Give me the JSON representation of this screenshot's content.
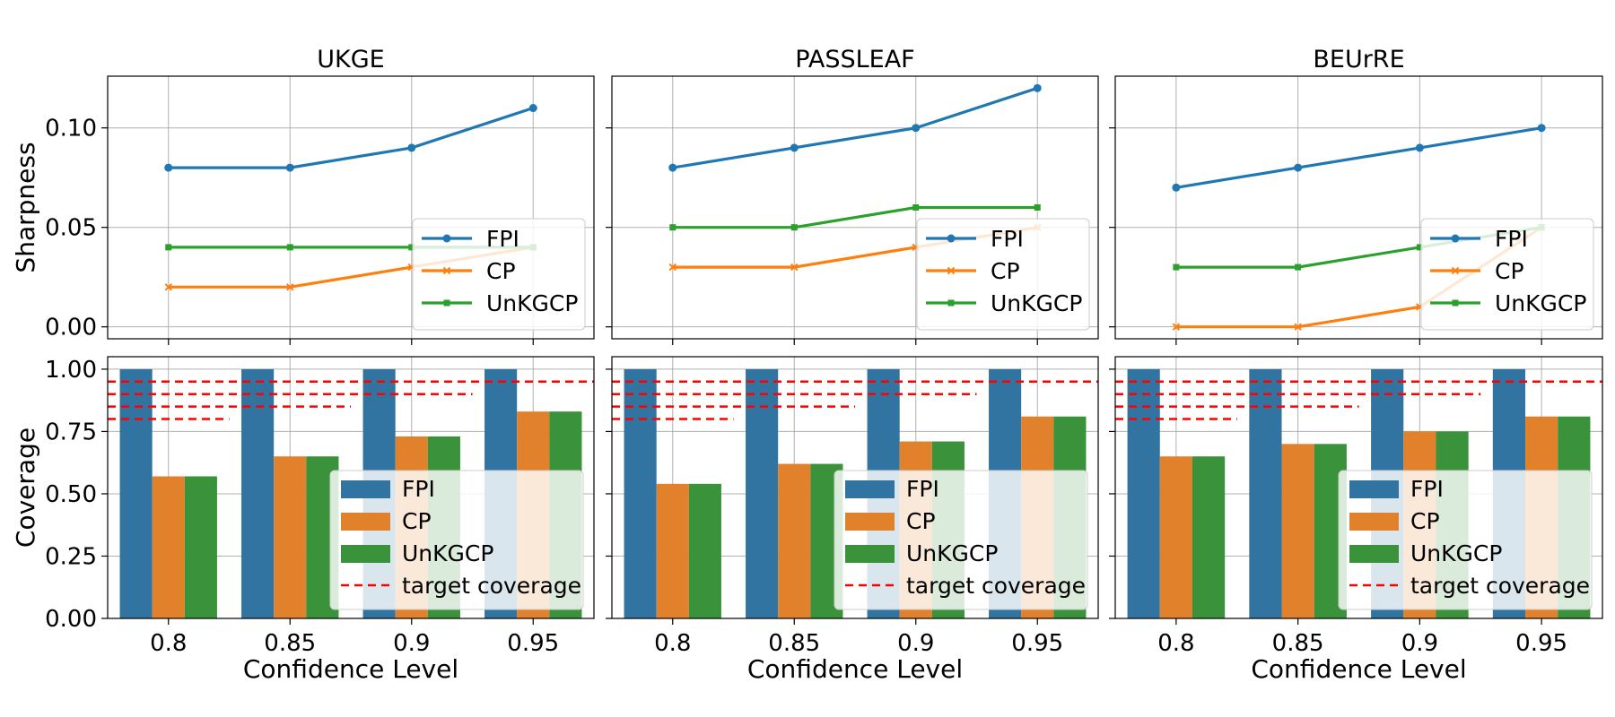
{
  "chart_data": [
    {
      "type": "line",
      "model": "UKGE",
      "title": "UKGE",
      "xlabel": "",
      "ylabel": "Sharpness",
      "categories": [
        "0.8",
        "0.85",
        "0.9",
        "0.95"
      ],
      "ylim": [
        -0.006,
        0.126
      ],
      "yticks": [
        "0.00",
        "0.05",
        "0.10"
      ],
      "legend_position": "lower-right",
      "series": [
        {
          "name": "FPI",
          "marker": "circle",
          "color": "#1f77b4",
          "values": [
            0.08,
            0.08,
            0.09,
            0.11
          ]
        },
        {
          "name": "CP",
          "marker": "x",
          "color": "#ff7f0e",
          "values": [
            0.02,
            0.02,
            0.03,
            0.04
          ]
        },
        {
          "name": "UnKGCP",
          "marker": "square",
          "color": "#2ca02c",
          "values": [
            0.04,
            0.04,
            0.04,
            0.04
          ]
        }
      ]
    },
    {
      "type": "line",
      "model": "PASSLEAF",
      "title": "PASSLEAF",
      "xlabel": "",
      "ylabel": "",
      "categories": [
        "0.8",
        "0.85",
        "0.9",
        "0.95"
      ],
      "ylim": [
        -0.006,
        0.126
      ],
      "legend_position": "lower-right",
      "series": [
        {
          "name": "FPI",
          "marker": "circle",
          "color": "#1f77b4",
          "values": [
            0.08,
            0.09,
            0.1,
            0.12
          ]
        },
        {
          "name": "CP",
          "marker": "x",
          "color": "#ff7f0e",
          "values": [
            0.03,
            0.03,
            0.04,
            0.05
          ]
        },
        {
          "name": "UnKGCP",
          "marker": "square",
          "color": "#2ca02c",
          "values": [
            0.05,
            0.05,
            0.06,
            0.06
          ]
        }
      ]
    },
    {
      "type": "line",
      "model": "BEUrRE",
      "title": "BEUrRE",
      "xlabel": "",
      "ylabel": "",
      "categories": [
        "0.8",
        "0.85",
        "0.9",
        "0.95"
      ],
      "ylim": [
        -0.006,
        0.126
      ],
      "legend_position": "lower-right",
      "series": [
        {
          "name": "FPI",
          "marker": "circle",
          "color": "#1f77b4",
          "values": [
            0.07,
            0.08,
            0.09,
            0.1
          ]
        },
        {
          "name": "CP",
          "marker": "x",
          "color": "#ff7f0e",
          "values": [
            0.0,
            0.0,
            0.01,
            0.05
          ]
        },
        {
          "name": "UnKGCP",
          "marker": "square",
          "color": "#2ca02c",
          "values": [
            0.03,
            0.03,
            0.04,
            0.05
          ]
        }
      ]
    },
    {
      "type": "bar",
      "model": "UKGE",
      "title": "",
      "xlabel": "Confidence Level",
      "ylabel": "Coverage",
      "categories": [
        "0.8",
        "0.85",
        "0.9",
        "0.95"
      ],
      "ylim": [
        0,
        1.05
      ],
      "yticks": [
        "0.00",
        "0.25",
        "0.50",
        "0.75",
        "1.00"
      ],
      "legend_position": "lower-right",
      "target_coverage": {
        "name": "target coverage",
        "color": "#ff0000",
        "values": [
          0.8,
          0.85,
          0.9,
          0.95
        ]
      },
      "series": [
        {
          "name": "FPI",
          "color": "#3274a1",
          "values": [
            1.0,
            1.0,
            1.0,
            1.0
          ]
        },
        {
          "name": "CP",
          "color": "#e1812c",
          "values": [
            0.57,
            0.65,
            0.73,
            0.83
          ]
        },
        {
          "name": "UnKGCP",
          "color": "#3a923a",
          "values": [
            0.57,
            0.65,
            0.73,
            0.83
          ]
        }
      ]
    },
    {
      "type": "bar",
      "model": "PASSLEAF",
      "title": "",
      "xlabel": "Confidence Level",
      "ylabel": "",
      "categories": [
        "0.8",
        "0.85",
        "0.9",
        "0.95"
      ],
      "ylim": [
        0,
        1.05
      ],
      "legend_position": "lower-right",
      "target_coverage": {
        "name": "target coverage",
        "color": "#ff0000",
        "values": [
          0.8,
          0.85,
          0.9,
          0.95
        ]
      },
      "series": [
        {
          "name": "FPI",
          "color": "#3274a1",
          "values": [
            1.0,
            1.0,
            1.0,
            1.0
          ]
        },
        {
          "name": "CP",
          "color": "#e1812c",
          "values": [
            0.54,
            0.62,
            0.71,
            0.81
          ]
        },
        {
          "name": "UnKGCP",
          "color": "#3a923a",
          "values": [
            0.54,
            0.62,
            0.71,
            0.81
          ]
        }
      ]
    },
    {
      "type": "bar",
      "model": "BEUrRE",
      "title": "",
      "xlabel": "Confidence Level",
      "ylabel": "",
      "categories": [
        "0.8",
        "0.85",
        "0.9",
        "0.95"
      ],
      "ylim": [
        0,
        1.05
      ],
      "legend_position": "lower-right",
      "target_coverage": {
        "name": "target coverage",
        "color": "#ff0000",
        "values": [
          0.8,
          0.85,
          0.9,
          0.95
        ]
      },
      "series": [
        {
          "name": "FPI",
          "color": "#3274a1",
          "values": [
            1.0,
            1.0,
            1.0,
            1.0
          ]
        },
        {
          "name": "CP",
          "color": "#e1812c",
          "values": [
            0.65,
            0.7,
            0.75,
            0.81
          ]
        },
        {
          "name": "UnKGCP",
          "color": "#3a923a",
          "values": [
            0.65,
            0.7,
            0.75,
            0.81
          ]
        }
      ]
    }
  ]
}
